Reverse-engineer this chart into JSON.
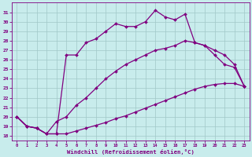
{
  "xlabel": "Windchill (Refroidissement éolien,°C)",
  "bg_color": "#c8ecec",
  "line_color": "#800080",
  "grid_color": "#a0c8c8",
  "x_ticks": [
    0,
    1,
    2,
    3,
    4,
    5,
    6,
    7,
    8,
    9,
    10,
    11,
    12,
    13,
    14,
    15,
    16,
    17,
    18,
    19,
    20,
    21,
    22,
    23
  ],
  "y_ticks": [
    18,
    19,
    20,
    21,
    22,
    23,
    24,
    25,
    26,
    27,
    28,
    29,
    30,
    31
  ],
  "ylim": [
    17.5,
    32.0
  ],
  "xlim": [
    -0.5,
    23.5
  ],
  "line1_x": [
    0,
    1,
    2,
    3,
    4,
    5,
    6,
    7,
    8,
    9,
    10,
    11,
    12,
    13,
    14,
    15,
    16,
    17,
    18,
    19,
    20,
    21,
    22,
    23
  ],
  "line1_y": [
    20.0,
    19.0,
    18.8,
    18.2,
    18.2,
    18.2,
    18.5,
    18.8,
    19.1,
    19.4,
    19.8,
    20.1,
    20.5,
    20.9,
    21.3,
    21.7,
    22.1,
    22.5,
    22.9,
    23.2,
    23.4,
    23.5,
    23.5,
    23.2
  ],
  "line2_x": [
    0,
    1,
    2,
    3,
    4,
    5,
    6,
    7,
    8,
    9,
    10,
    11,
    12,
    13,
    14,
    15,
    16,
    17,
    18,
    19,
    20,
    21,
    22,
    23
  ],
  "line2_y": [
    20.0,
    19.0,
    18.8,
    18.2,
    19.5,
    20.0,
    21.2,
    22.0,
    23.0,
    24.0,
    24.8,
    25.5,
    26.0,
    26.5,
    27.0,
    27.2,
    27.5,
    28.0,
    27.8,
    27.5,
    27.0,
    26.5,
    25.5,
    23.2
  ],
  "line3_x": [
    0,
    1,
    2,
    3,
    4,
    5,
    6,
    7,
    8,
    9,
    10,
    11,
    12,
    13,
    14,
    15,
    16,
    17,
    18,
    19,
    20,
    21,
    22,
    23
  ],
  "line3_y": [
    20.0,
    19.0,
    18.8,
    18.2,
    18.2,
    26.5,
    26.5,
    27.8,
    28.2,
    29.0,
    29.8,
    29.5,
    29.5,
    30.0,
    31.2,
    30.5,
    30.2,
    30.8,
    27.8,
    27.5,
    26.5,
    25.5,
    25.2,
    23.2
  ],
  "marker": "D",
  "marker_size": 2.0,
  "line_width": 0.9
}
